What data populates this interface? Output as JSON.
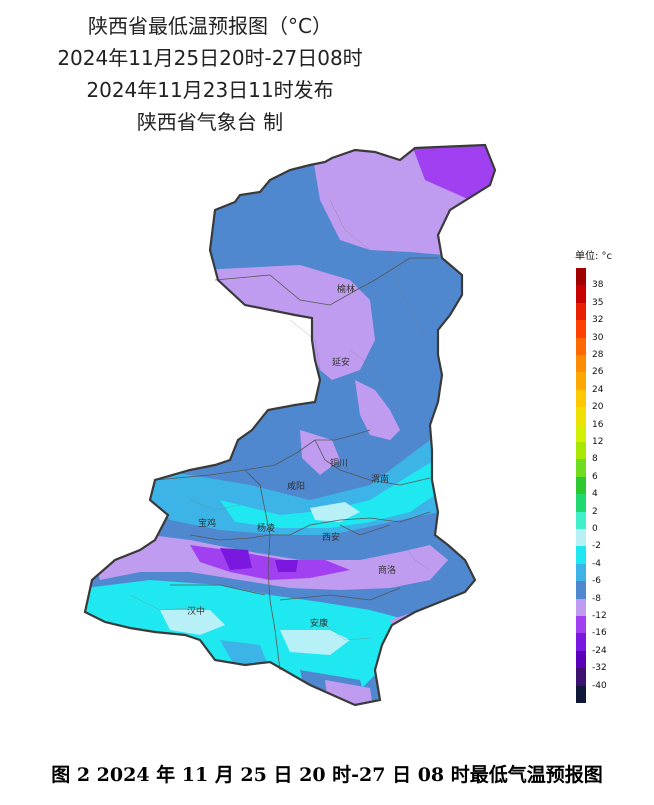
{
  "title": {
    "line1": "陕西省最低温预报图（°C）",
    "line2": "2024年11月25日20时-27日08时",
    "line3": "2024年11月23日11时发布",
    "line4": "陕西省气象台 制"
  },
  "legend": {
    "unit": "单位: °c",
    "items": [
      {
        "label": "38",
        "color": "#a00000"
      },
      {
        "label": "35",
        "color": "#c80000"
      },
      {
        "label": "32",
        "color": "#e82000"
      },
      {
        "label": "30",
        "color": "#ff4000"
      },
      {
        "label": "28",
        "color": "#ff6a00"
      },
      {
        "label": "26",
        "color": "#ff8c00"
      },
      {
        "label": "24",
        "color": "#ffa800"
      },
      {
        "label": "20",
        "color": "#ffc800"
      },
      {
        "label": "16",
        "color": "#f0e000"
      },
      {
        "label": "12",
        "color": "#d2f000"
      },
      {
        "label": "8",
        "color": "#a8e800"
      },
      {
        "label": "6",
        "color": "#70dc20"
      },
      {
        "label": "4",
        "color": "#30c830"
      },
      {
        "label": "2",
        "color": "#20d870"
      },
      {
        "label": "0",
        "color": "#40f0c8"
      },
      {
        "label": "-2",
        "color": "#b8f0f8"
      },
      {
        "label": "-4",
        "color": "#20e8f0"
      },
      {
        "label": "-6",
        "color": "#3cb4e8"
      },
      {
        "label": "-8",
        "color": "#5088d0"
      },
      {
        "label": "-12",
        "color": "#c09cf0"
      },
      {
        "label": "-16",
        "color": "#a040f0"
      },
      {
        "label": "-24",
        "color": "#7a18e0"
      },
      {
        "label": "-32",
        "color": "#5a00b8"
      },
      {
        "label": "-40",
        "color": "#3c1070"
      },
      {
        "label": "",
        "color": "#101838"
      }
    ]
  },
  "cities": {
    "yulin": "榆林",
    "yanan": "延安",
    "tongchuan": "铜川",
    "weinan": "渭南",
    "xianyang": "咸阳",
    "baoji": "宝鸡",
    "yangling": "杨凌",
    "xian": "西安",
    "shangluo": "商洛",
    "hanzhong": "汉中",
    "ankang": "安康"
  },
  "caption": "图 2  2024 年 11 月 25 日 20 时-27 日 08 时最低气温预报图"
}
